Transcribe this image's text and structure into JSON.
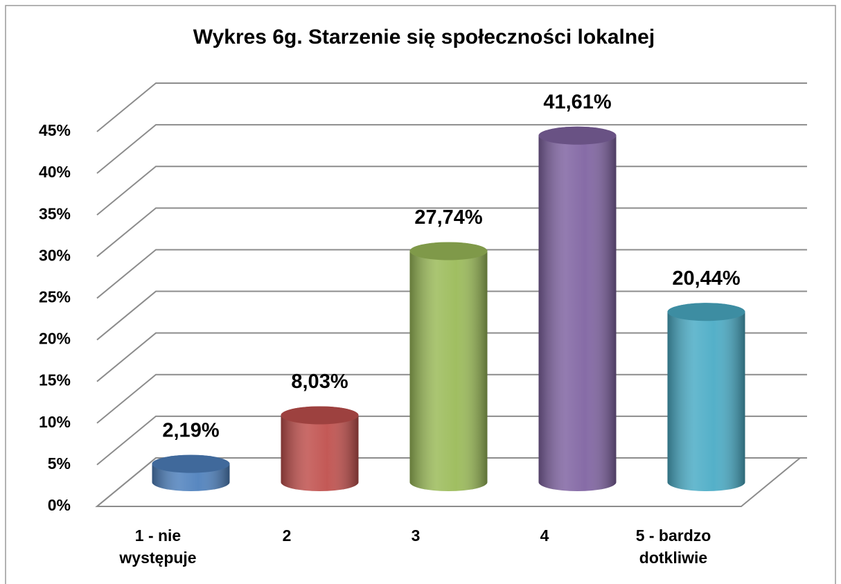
{
  "chart_data": {
    "type": "bar3d",
    "title": "Wykres 6g. Starzenie się społeczności lokalnej",
    "categories": [
      "1 - nie występuje",
      "2",
      "3",
      "4",
      "5 - bardzo dotkliwie"
    ],
    "values": [
      2.19,
      8.03,
      27.74,
      41.61,
      20.44
    ],
    "value_labels": [
      "2,19%",
      "8,03%",
      "27,74%",
      "41,61%",
      "20,44%"
    ],
    "colors": [
      "#4f81bd",
      "#c0504d",
      "#9bbb59",
      "#8064a2",
      "#4bacc6"
    ],
    "ylim": [
      0,
      45
    ],
    "yticks": [
      {
        "value": 0,
        "label": "0%"
      },
      {
        "value": 5,
        "label": "5%"
      },
      {
        "value": 10,
        "label": "10%"
      },
      {
        "value": 15,
        "label": "15%"
      },
      {
        "value": 20,
        "label": "20%"
      },
      {
        "value": 25,
        "label": "25%"
      },
      {
        "value": 30,
        "label": "30%"
      },
      {
        "value": 35,
        "label": "35%"
      },
      {
        "value": 40,
        "label": "40%"
      },
      {
        "value": 45,
        "label": "45%"
      }
    ],
    "grid": true
  }
}
